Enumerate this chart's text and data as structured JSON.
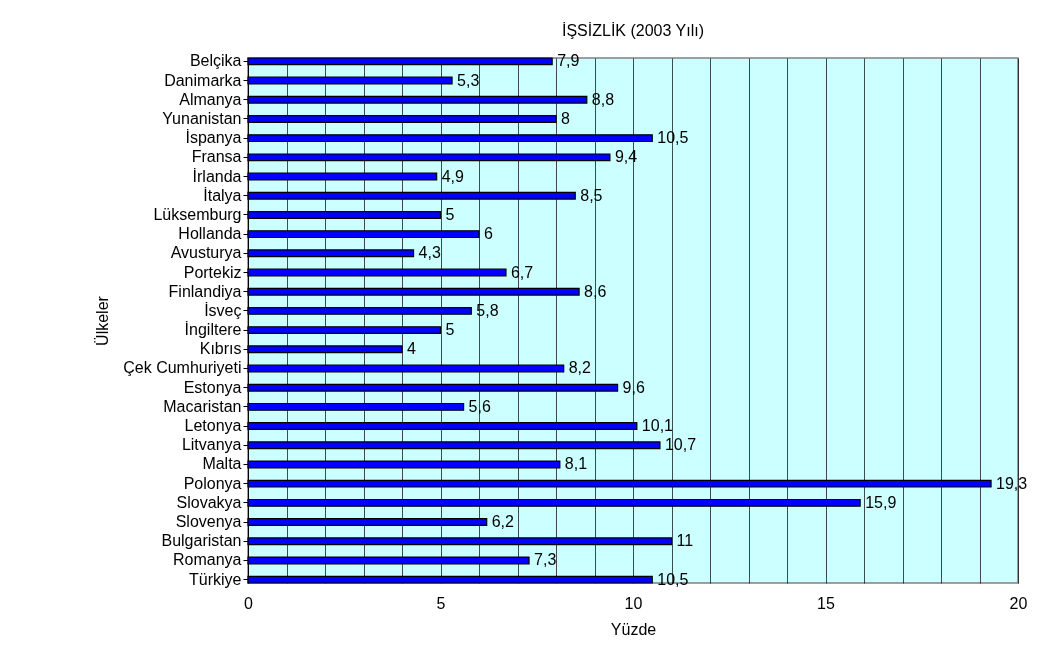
{
  "chart_data": {
    "type": "bar",
    "orientation": "horizontal",
    "title": "İŞSİZLİK (2003 Yılı)",
    "xlabel": "Yüzde",
    "ylabel": "Ülkeler",
    "categories": [
      "Belçika",
      "Danimarka",
      "Almanya",
      "Yunanistan",
      "İspanya",
      "Fransa",
      "İrlanda",
      "İtalya",
      "Lüksemburg",
      "Hollanda",
      "Avusturya",
      "Portekiz",
      "Finlandiya",
      "İsveç",
      "İngiltere",
      "Kıbrıs",
      "Çek Cumhuriyeti",
      "Estonya",
      "Macaristan",
      "Letonya",
      "Litvanya",
      "Malta",
      "Polonya",
      "Slovakya",
      "Slovenya",
      "Bulgaristan",
      "Romanya",
      "Türkiye"
    ],
    "values": [
      7.9,
      5.3,
      8.8,
      8,
      10.5,
      9.4,
      4.9,
      8.5,
      5,
      6,
      4.3,
      6.7,
      8.6,
      5.8,
      5,
      4,
      8.2,
      9.6,
      5.6,
      10.1,
      10.7,
      8.1,
      19.3,
      15.9,
      6.2,
      11,
      7.3,
      10.5
    ],
    "value_labels": [
      "7,9",
      "5,3",
      "8,8",
      "8",
      "10,5",
      "9,4",
      "4,9",
      "8,5",
      "5",
      "6",
      "4,3",
      "6,7",
      "8,6",
      "5,8",
      "5",
      "4",
      "8,2",
      "9,6",
      "5,6",
      "10,1",
      "10,7",
      "8,1",
      "19,3",
      "15,9",
      "6,2",
      "11",
      "7,3",
      "10,5"
    ],
    "color": "#0000ff",
    "xlim": [
      0,
      20
    ],
    "xticks": [
      0,
      {
        "value": 1,
        "label": null
      },
      {
        "value": 2,
        "label": null
      },
      {
        "value": 3,
        "label": null
      },
      {
        "value": 4,
        "label": null
      },
      5,
      {
        "value": 6,
        "label": null
      },
      {
        "value": 7,
        "label": null
      },
      {
        "value": 8,
        "label": null
      },
      {
        "value": 9,
        "label": null
      },
      10,
      {
        "value": 11,
        "label": null
      },
      {
        "value": 12,
        "label": null
      },
      {
        "value": 13,
        "label": null
      },
      {
        "value": 14,
        "label": null
      },
      15,
      {
        "value": 16,
        "label": null
      },
      {
        "value": 17,
        "label": null
      },
      {
        "value": 18,
        "label": null
      },
      {
        "value": 19,
        "label": null
      },
      20
    ],
    "grid": "x"
  }
}
